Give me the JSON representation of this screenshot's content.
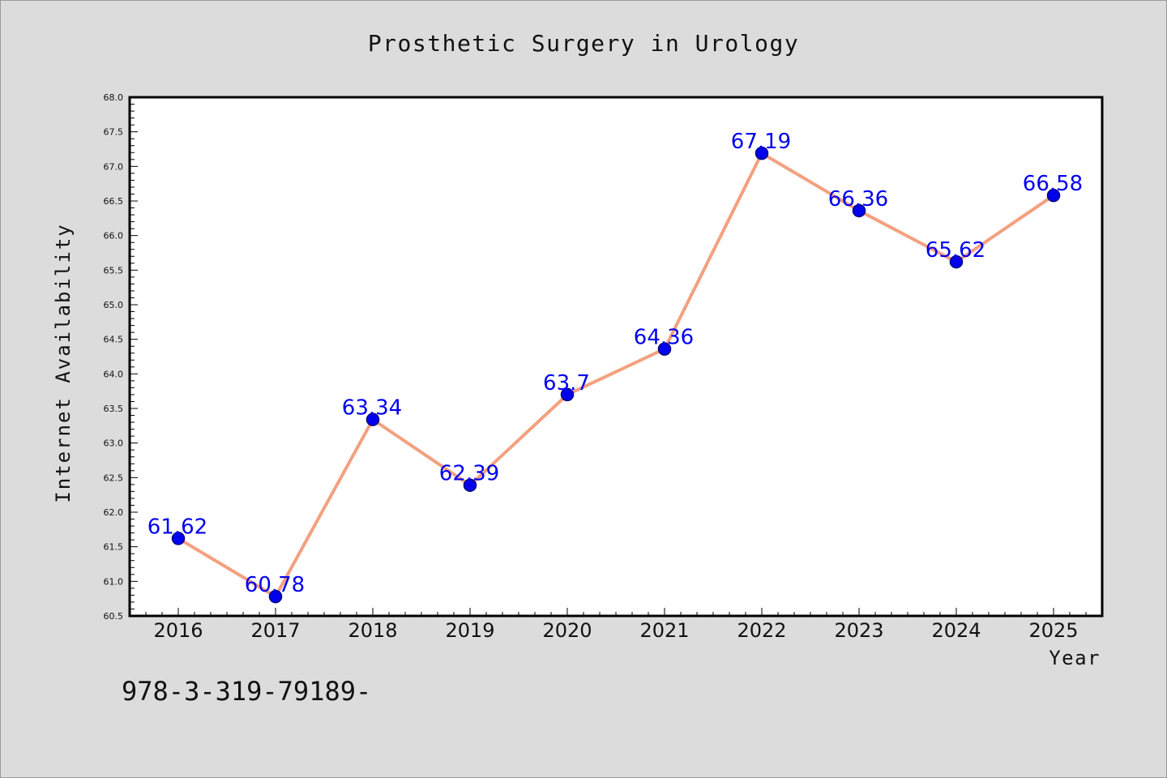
{
  "chart_data": {
    "type": "line",
    "title": "Prosthetic Surgery in Urology",
    "xlabel": "Year",
    "ylabel": "Internet Availability",
    "categories": [
      "2016",
      "2017",
      "2018",
      "2019",
      "2020",
      "2021",
      "2022",
      "2023",
      "2024",
      "2025"
    ],
    "values": [
      61.62,
      60.78,
      63.34,
      62.39,
      63.7,
      64.36,
      67.19,
      66.36,
      65.62,
      66.58
    ],
    "data_labels": [
      "61.62",
      "60.78",
      "63.34",
      "62.39",
      "63.7",
      "64.36",
      "67.19",
      "66.36",
      "65.62",
      "66.58"
    ],
    "ylim": [
      60.5,
      68.0
    ],
    "yticks": [
      "60.5",
      "61.0",
      "61.5",
      "62.0",
      "62.5",
      "63.0",
      "63.5",
      "64.0",
      "64.5",
      "65.0",
      "65.5",
      "66.0",
      "66.5",
      "67.0",
      "67.5",
      "68.0"
    ],
    "grid": false,
    "legend": "none",
    "colors": {
      "line": "#f4a07f",
      "marker": "#0000ee",
      "marker_edge": "#000080",
      "label": "#0000ee",
      "plot_bg": "#ffffff",
      "figure_bg": "#dcdcdc"
    }
  },
  "footer_note": "978-3-319-79189-"
}
